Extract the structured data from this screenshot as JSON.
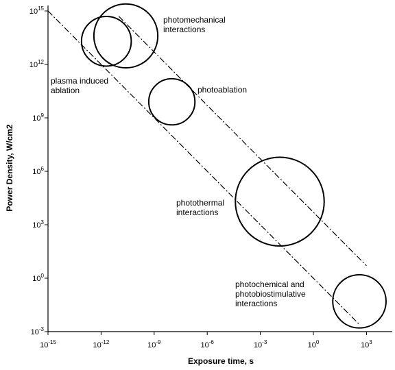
{
  "chart_data": {
    "type": "scatter",
    "title": "",
    "xlabel": "Exposure time, s",
    "ylabel": "Power Density, W/cm2",
    "x_scale": "log10",
    "y_scale": "log10",
    "xlim_exponent": [
      -15,
      4
    ],
    "ylim_exponent": [
      -3,
      15.5
    ],
    "x_ticks": [
      {
        "base": "10",
        "exp": "-15",
        "value": -15
      },
      {
        "base": "10",
        "exp": "-12",
        "value": -12
      },
      {
        "base": "10",
        "exp": "-9",
        "value": -9
      },
      {
        "base": "10",
        "exp": "-6",
        "value": -6
      },
      {
        "base": "10",
        "exp": "-3",
        "value": -3
      },
      {
        "base": "10",
        "exp": "0",
        "value": 0
      },
      {
        "base": "10",
        "exp": "3",
        "value": 3
      }
    ],
    "y_ticks": [
      {
        "base": "10",
        "exp": "-3",
        "value": -3
      },
      {
        "base": "10",
        "exp": "0",
        "value": 0
      },
      {
        "base": "10",
        "exp": "3",
        "value": 3
      },
      {
        "base": "10",
        "exp": "6",
        "value": 6
      },
      {
        "base": "10",
        "exp": "9",
        "value": 9
      },
      {
        "base": "10",
        "exp": "12",
        "value": 12
      },
      {
        "base": "10",
        "exp": "15",
        "value": 15
      }
    ],
    "regions": [
      {
        "label": "plasma induced\nablation",
        "log_x": -11.7,
        "log_y": 13.3,
        "radius_decades": 1.4
      },
      {
        "label": "photomechanical\ninteractions",
        "log_x": -10.6,
        "log_y": 13.6,
        "radius_decades": 1.8
      },
      {
        "label": "photoablation",
        "log_x": -8.0,
        "log_y": 9.9,
        "radius_decades": 1.3
      },
      {
        "label": "photothermal\ninteractions",
        "log_x": -1.9,
        "log_y": 4.3,
        "radius_decades": 2.5
      },
      {
        "label": "photochemical and\nphotobiostimulative\ninteractions",
        "log_x": 2.6,
        "log_y": -1.3,
        "radius_decades": 1.5
      }
    ],
    "reference_lines": [
      {
        "style": "dash-dot",
        "points": [
          [
            -15,
            15
          ],
          [
            2.6,
            -2.6
          ]
        ]
      },
      {
        "style": "dash-dot",
        "points": [
          [
            -11.0,
            14.7
          ],
          [
            3.0,
            0.7
          ]
        ]
      }
    ],
    "grid": false,
    "legend": "none"
  }
}
